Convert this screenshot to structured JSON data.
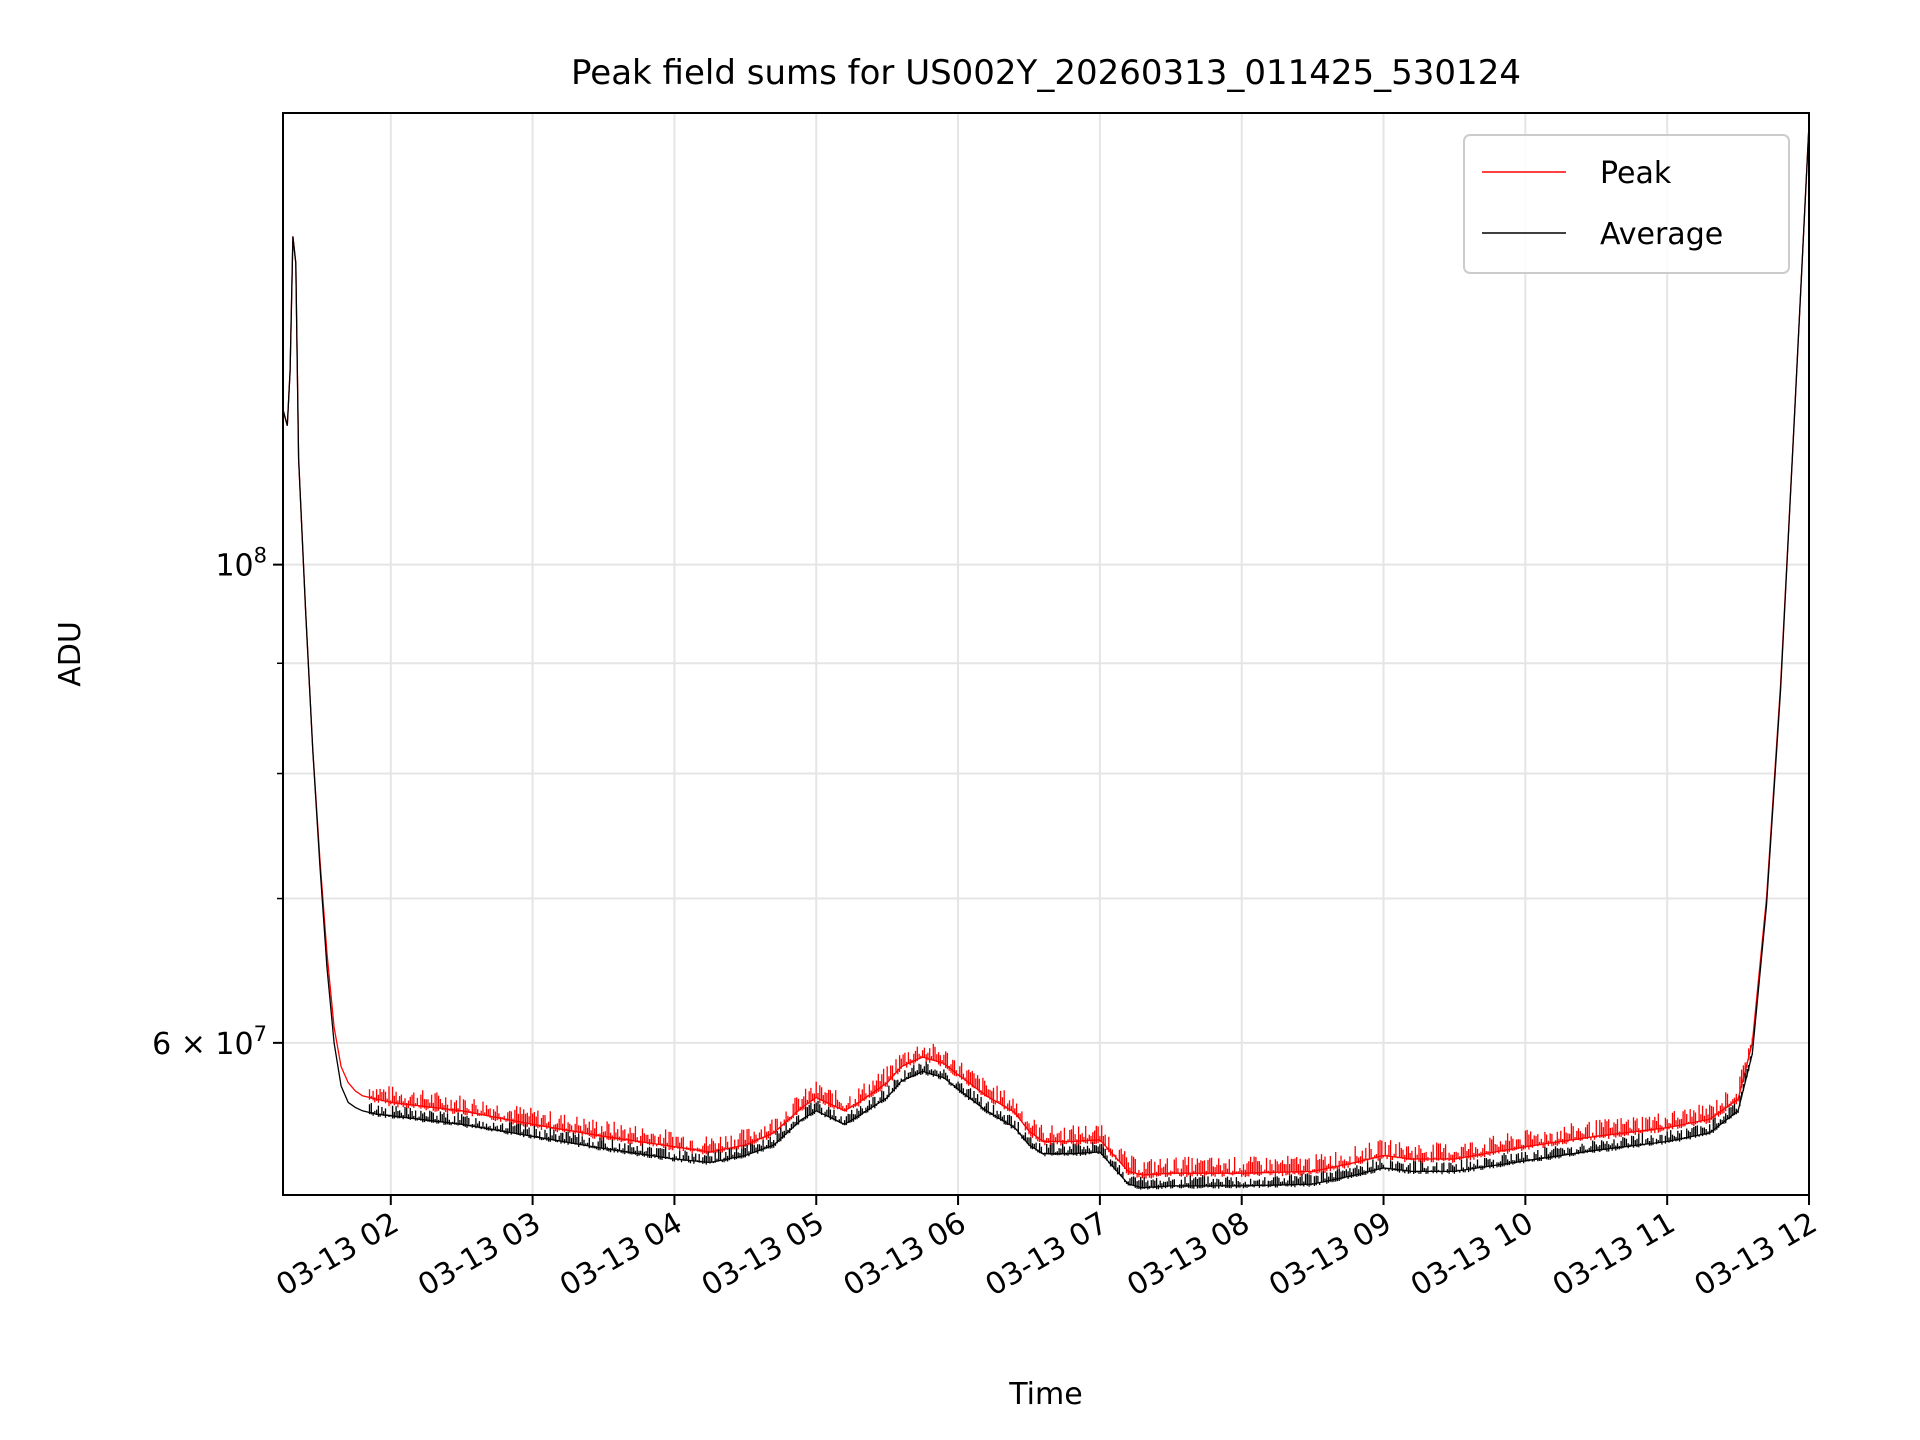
{
  "chart_data": {
    "type": "line",
    "title": "Peak field sums for US002Y_20260313_011425_530124",
    "xlabel": "Time",
    "ylabel": "ADU",
    "y_scale": "log",
    "x_unit": "time of day (hours, 2026-03-13)",
    "xlim": [
      1.24,
      12.0
    ],
    "ylim": [
      51000000,
      162000000
    ],
    "x_tick_values": [
      2,
      3,
      4,
      5,
      6,
      7,
      8,
      9,
      10,
      11,
      12
    ],
    "x_tick_labels": [
      "03-13 02",
      "03-13 03",
      "03-13 04",
      "03-13 05",
      "03-13 06",
      "03-13 07",
      "03-13 08",
      "03-13 09",
      "03-13 10",
      "03-13 11",
      "03-13 12"
    ],
    "y_major_ticks": [
      {
        "value": 100000000,
        "label": "10",
        "exp": "8"
      },
      {
        "value": 60000000,
        "label": "6 × 10",
        "exp": "7"
      }
    ],
    "y_minor_ticks": [
      70000000,
      80000000,
      90000000
    ],
    "grid": true,
    "legend": {
      "position": "top-right"
    },
    "series": [
      {
        "name": "Peak",
        "color": "#ff0000",
        "x": [
          1.24,
          1.27,
          1.29,
          1.31,
          1.33,
          1.35,
          1.4,
          1.45,
          1.5,
          1.55,
          1.6,
          1.65,
          1.7,
          1.75,
          1.8,
          1.9,
          2.0,
          2.5,
          3.0,
          3.5,
          4.0,
          4.25,
          4.5,
          4.7,
          4.9,
          5.0,
          5.1,
          5.2,
          5.3,
          5.5,
          5.6,
          5.75,
          5.9,
          6.0,
          6.2,
          6.4,
          6.5,
          6.6,
          6.8,
          7.0,
          7.1,
          7.2,
          7.3,
          7.5,
          8.0,
          8.5,
          8.8,
          9.0,
          9.2,
          9.5,
          10.0,
          10.5,
          11.0,
          11.3,
          11.5,
          11.6,
          11.7,
          11.8,
          11.9,
          12.0
        ],
        "y": [
          118000000,
          116000000,
          123000000,
          142000000,
          138000000,
          112000000,
          95000000,
          82000000,
          73000000,
          66000000,
          61000000,
          58500000,
          57500000,
          57000000,
          56700000,
          56500000,
          56300000,
          55800000,
          55000000,
          54300000,
          53700000,
          53400000,
          53800000,
          54500000,
          56000000,
          56600000,
          56200000,
          55800000,
          56300000,
          57500000,
          58500000,
          59100000,
          58700000,
          58000000,
          56700000,
          55700000,
          54600000,
          54000000,
          54000000,
          54100000,
          53200000,
          52300000,
          52100000,
          52200000,
          52200000,
          52300000,
          52800000,
          53200000,
          53000000,
          53000000,
          53700000,
          54300000,
          54800000,
          55300000,
          56500000,
          60000000,
          70000000,
          88000000,
          118000000,
          160000000
        ]
      },
      {
        "name": "Average",
        "color": "#000000",
        "x": [
          1.24,
          1.27,
          1.29,
          1.31,
          1.33,
          1.35,
          1.4,
          1.45,
          1.5,
          1.55,
          1.6,
          1.65,
          1.7,
          1.75,
          1.8,
          1.9,
          2.0,
          2.5,
          3.0,
          3.5,
          4.0,
          4.25,
          4.5,
          4.7,
          4.9,
          5.0,
          5.1,
          5.2,
          5.3,
          5.5,
          5.6,
          5.75,
          5.9,
          6.0,
          6.2,
          6.4,
          6.5,
          6.6,
          6.8,
          7.0,
          7.1,
          7.2,
          7.3,
          7.5,
          8.0,
          8.5,
          8.8,
          9.0,
          9.2,
          9.5,
          10.0,
          10.5,
          11.0,
          11.3,
          11.5,
          11.6,
          11.7,
          11.8,
          11.9,
          12.0
        ],
        "y": [
          118000000,
          116000000,
          123000000,
          142000000,
          138000000,
          112000000,
          95000000,
          82000000,
          72500000,
          65000000,
          60000000,
          57300000,
          56300000,
          56000000,
          55800000,
          55600000,
          55500000,
          55000000,
          54300000,
          53600000,
          53000000,
          52800000,
          53200000,
          53800000,
          55300000,
          55800000,
          55400000,
          55000000,
          55500000,
          56600000,
          57600000,
          58200000,
          57800000,
          57100000,
          55800000,
          54800000,
          53800000,
          53300000,
          53300000,
          53400000,
          52500000,
          51600000,
          51400000,
          51500000,
          51500000,
          51600000,
          52100000,
          52500000,
          52300000,
          52300000,
          52900000,
          53500000,
          54000000,
          54500000,
          55800000,
          59300000,
          69500000,
          87500000,
          118000000,
          160000000
        ]
      }
    ]
  }
}
